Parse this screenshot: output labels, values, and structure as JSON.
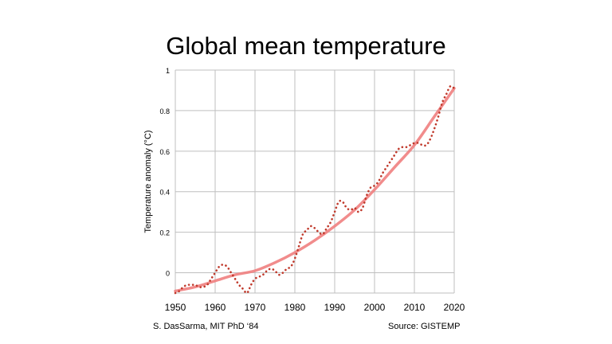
{
  "chart_data": {
    "type": "line",
    "title": "Global mean temperature",
    "xlabel": "",
    "ylabel": "Temperature anomaly (°C)",
    "xlim": [
      1950,
      2020
    ],
    "ylim": [
      -0.1,
      1.0
    ],
    "x_ticks": [
      "1950",
      "1960",
      "1970",
      "1980",
      "1990",
      "2000",
      "2010",
      "2020"
    ],
    "y_ticks": [
      "1",
      "0.8",
      "0.6",
      "0.4",
      "0.2",
      "0"
    ],
    "grid": true,
    "series": [
      {
        "style": "dotted",
        "color": "#c0392b",
        "x": [
          1950,
          1951,
          1952,
          1953,
          1954,
          1955,
          1956,
          1957,
          1958,
          1959,
          1960,
          1961,
          1962,
          1963,
          1964,
          1965,
          1966,
          1967,
          1968,
          1969,
          1970,
          1971,
          1972,
          1973,
          1974,
          1975,
          1976,
          1977,
          1978,
          1979,
          1980,
          1981,
          1982,
          1983,
          1984,
          1985,
          1986,
          1987,
          1988,
          1989,
          1990,
          1991,
          1992,
          1993,
          1994,
          1995,
          1996,
          1997,
          1998,
          1999,
          2000,
          2001,
          2002,
          2003,
          2004,
          2005,
          2006,
          2007,
          2008,
          2009,
          2010,
          2011,
          2012,
          2013,
          2014,
          2015,
          2016,
          2017,
          2018,
          2019,
          2020
        ],
        "values": [
          -0.1,
          -0.09,
          -0.07,
          -0.06,
          -0.06,
          -0.06,
          -0.07,
          -0.07,
          -0.06,
          -0.03,
          0.0,
          0.03,
          0.04,
          0.03,
          0.0,
          -0.03,
          -0.06,
          -0.08,
          -0.1,
          -0.06,
          -0.03,
          -0.02,
          -0.01,
          0.01,
          0.02,
          0.01,
          -0.01,
          0.0,
          0.02,
          0.03,
          0.07,
          0.13,
          0.19,
          0.21,
          0.23,
          0.22,
          0.2,
          0.19,
          0.22,
          0.25,
          0.3,
          0.35,
          0.35,
          0.32,
          0.31,
          0.32,
          0.3,
          0.32,
          0.38,
          0.42,
          0.43,
          0.45,
          0.49,
          0.52,
          0.55,
          0.58,
          0.61,
          0.62,
          0.62,
          0.63,
          0.64,
          0.64,
          0.63,
          0.63,
          0.66,
          0.71,
          0.77,
          0.84,
          0.88,
          0.92,
          0.91
        ]
      },
      {
        "style": "trend",
        "color": "#f08080",
        "x": [
          1950,
          1955,
          1960,
          1965,
          1970,
          1975,
          1980,
          1985,
          1990,
          1995,
          2000,
          2005,
          2010,
          2015,
          2020
        ],
        "values": [
          -0.09,
          -0.07,
          -0.04,
          -0.01,
          0.01,
          0.05,
          0.1,
          0.16,
          0.23,
          0.31,
          0.41,
          0.52,
          0.63,
          0.77,
          0.91
        ]
      }
    ]
  },
  "credits": {
    "left": "S. DasSarma, MIT PhD ‘84",
    "right": "Source: GISTEMP"
  }
}
